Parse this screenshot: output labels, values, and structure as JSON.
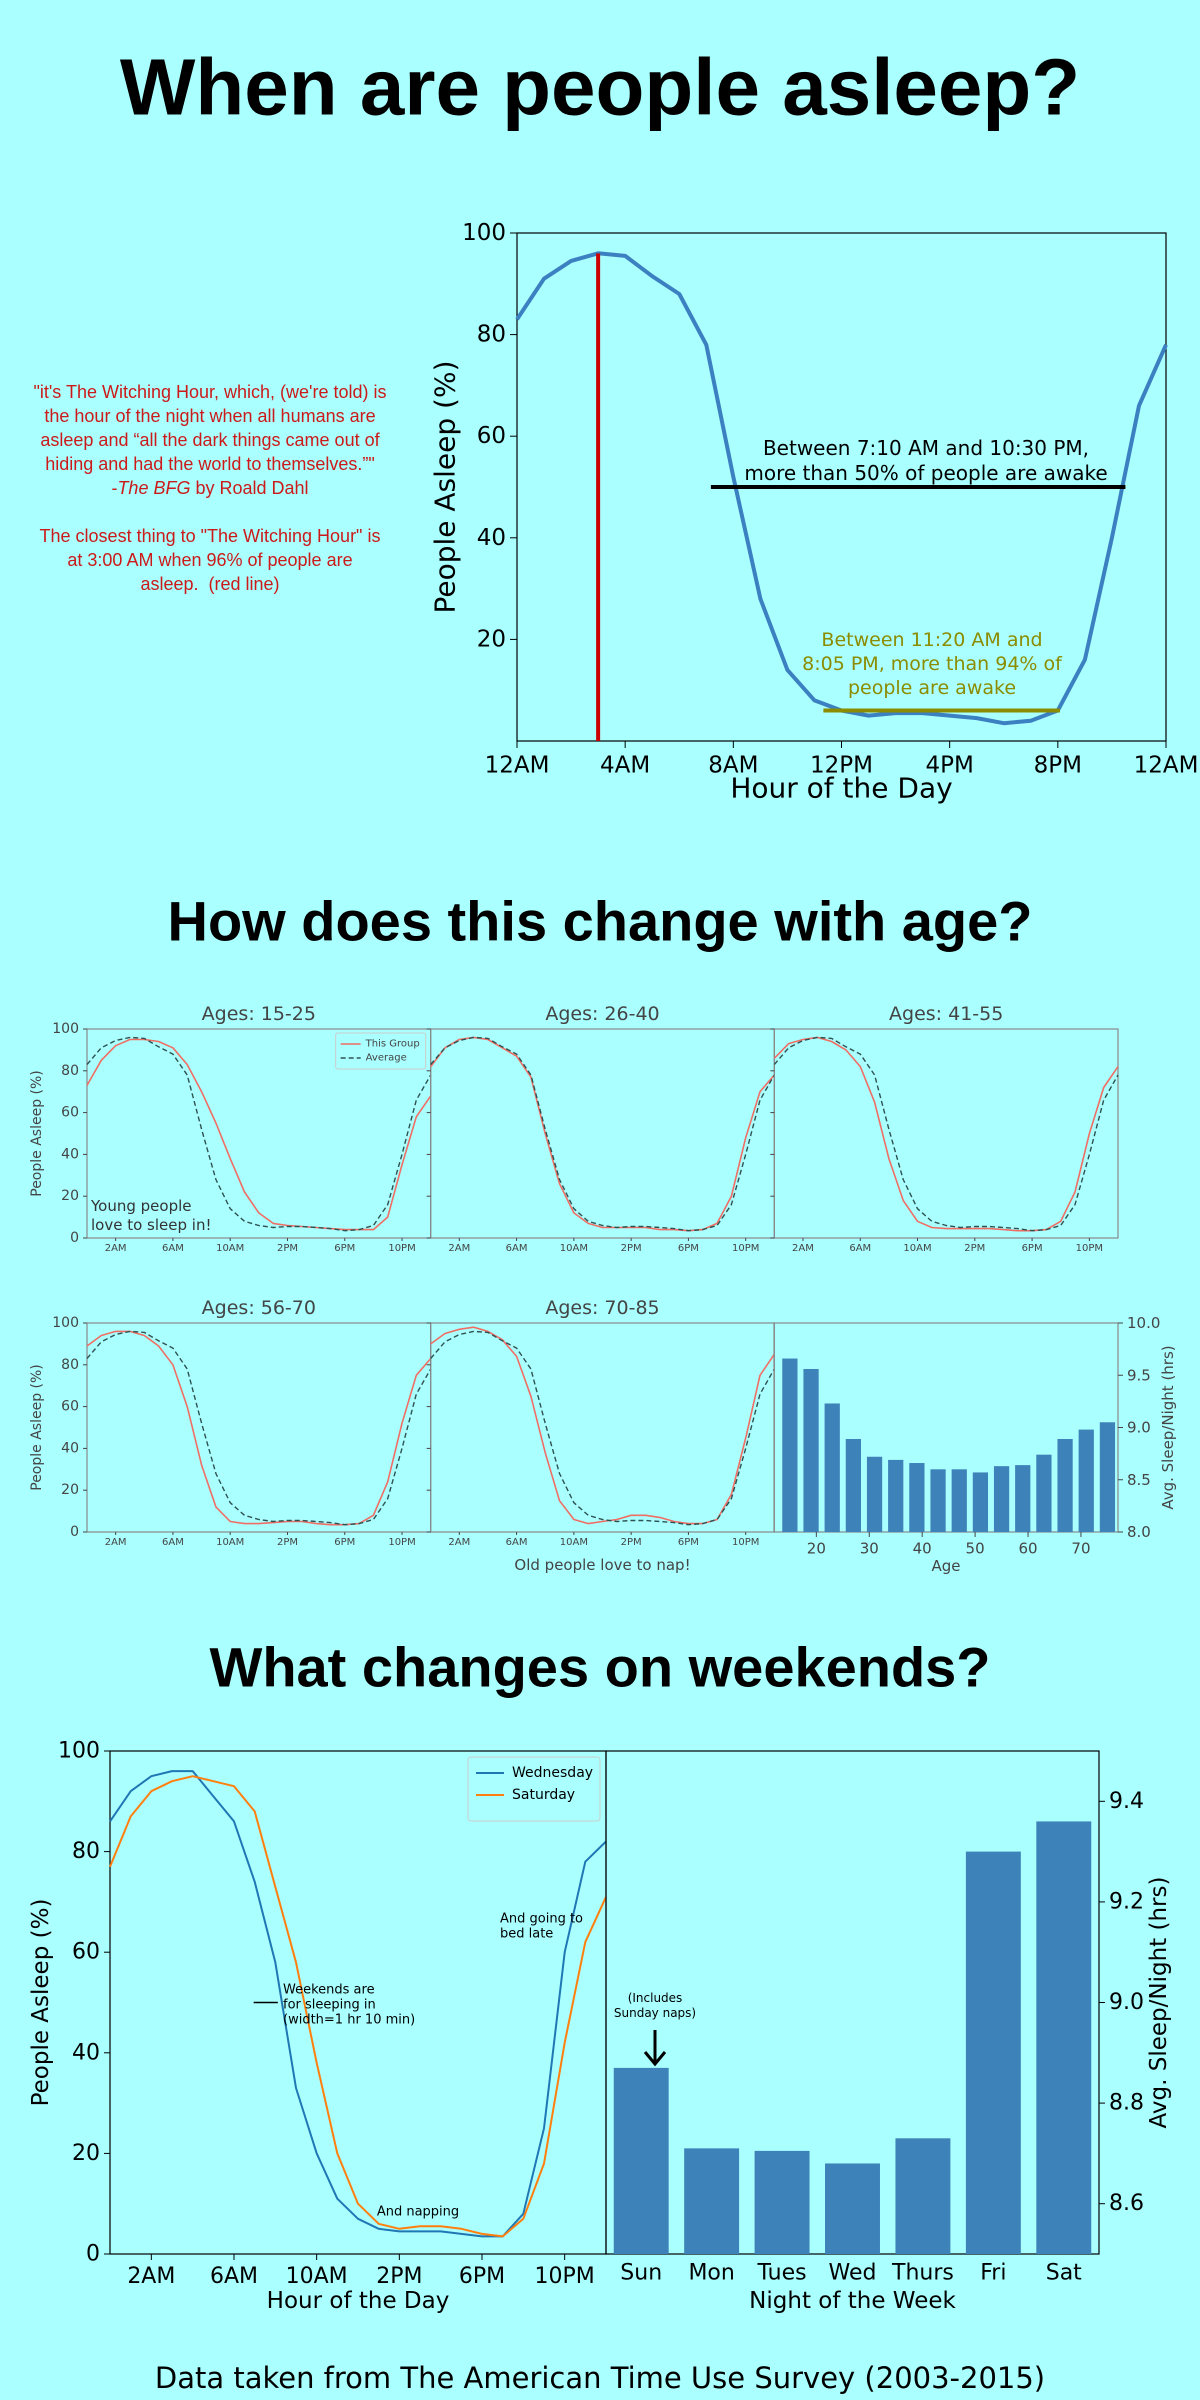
{
  "headings": [
    "When are people asleep?",
    "How does this change with age?",
    "What changes on weekends?"
  ],
  "quote": {
    "lines": [
      "\"it's The Witching Hour, which, (we're told) is",
      "the hour of the night when all humans are",
      "asleep and “all the dark things came out of",
      "hiding and had the world to themselves.”\""
    ],
    "attribution": [
      "-",
      "The BFG",
      " by Roald Dahl"
    ],
    "note": [
      "The closest thing to \"The Witching Hour\" is",
      "at 3:00 AM when 96% of people are",
      "asleep.  (red line)"
    ]
  },
  "footer": "Data taken from The American Time Use Survey (2003-2015)",
  "chart_data": [
    {
      "type": "line",
      "xlabel": "Hour of the Day",
      "ylabel": "People Asleep (%)",
      "x": [
        0,
        1,
        2,
        3,
        4,
        5,
        6,
        7,
        8,
        9,
        10,
        11,
        12,
        13,
        14,
        15,
        16,
        17,
        18,
        19,
        20,
        21,
        22,
        23,
        24
      ],
      "xlim": [
        0,
        24
      ],
      "xticks": [
        {
          "value": 0,
          "label": "12AM"
        },
        {
          "value": 4,
          "label": "4AM"
        },
        {
          "value": 8,
          "label": "8AM"
        },
        {
          "value": 12,
          "label": "12PM"
        },
        {
          "value": 16,
          "label": "4PM"
        },
        {
          "value": 20,
          "label": "8PM"
        },
        {
          "value": 24,
          "label": "12AM"
        }
      ],
      "ylim": [
        0,
        100
      ],
      "yticks": [
        20,
        40,
        60,
        80,
        100
      ],
      "series": [
        {
          "color": "#3b80c0",
          "values": [
            83,
            91,
            94.5,
            96,
            95.5,
            91.5,
            88,
            78,
            52,
            28,
            14,
            8,
            6,
            5,
            5.5,
            5.5,
            5,
            4.5,
            3.5,
            4,
            6,
            16,
            40,
            66,
            78
          ]
        }
      ],
      "lines": [
        {
          "x0": 3,
          "x1": 3,
          "y0": 0,
          "y1": 96,
          "color": "#cc0000"
        },
        {
          "x0": 7.17,
          "x1": 22.5,
          "y0": 50,
          "y1": 50,
          "color": "#000000"
        },
        {
          "x0": 11.33,
          "x1": 20.08,
          "y0": 6,
          "y1": 6,
          "color": "#8c8c00"
        }
      ],
      "notes": [
        {
          "text": [
            "Between 7:10 AM and 10:30 PM,",
            "more than 50% of people are awake"
          ],
          "color": "#000000"
        },
        {
          "text": [
            "Between 11:20 AM and",
            "8:05 PM, more than 94% of",
            "people are awake"
          ],
          "color": "#8c8c00"
        }
      ]
    },
    {
      "type": "small-multiples",
      "ylabel": "People Asleep (%)",
      "x": [
        0,
        1,
        2,
        3,
        4,
        5,
        6,
        7,
        8,
        9,
        10,
        11,
        12,
        13,
        14,
        15,
        16,
        17,
        18,
        19,
        20,
        21,
        22,
        23,
        24
      ],
      "xlim": [
        0,
        24
      ],
      "xticks": [
        {
          "value": 2,
          "label": "2AM"
        },
        {
          "value": 6,
          "label": "6AM"
        },
        {
          "value": 10,
          "label": "10AM"
        },
        {
          "value": 14,
          "label": "2PM"
        },
        {
          "value": 18,
          "label": "6PM"
        },
        {
          "value": 22,
          "label": "10PM"
        }
      ],
      "ylim": [
        0,
        100
      ],
      "yticks": [
        0,
        20,
        40,
        60,
        80,
        100
      ],
      "legend": "upper right",
      "group": {
        "name": "This Group",
        "color": "#f06e64"
      },
      "average": {
        "name": "Average",
        "color": "#2e5252",
        "values": [
          83,
          91,
          94.5,
          96,
          95.5,
          91.5,
          88,
          78,
          52,
          28,
          14,
          8,
          6,
          5,
          5.5,
          5.5,
          5,
          4.5,
          3.5,
          4,
          6,
          16,
          40,
          66,
          78
        ]
      },
      "panels": [
        {
          "title": "Ages: 15-25",
          "values": [
            73,
            85,
            92,
            95,
            95,
            94,
            91,
            83,
            70,
            55,
            38,
            22,
            12,
            7,
            6,
            5.5,
            5,
            4.5,
            4,
            4,
            4,
            10,
            35,
            58,
            68
          ],
          "note": [
            "Young people",
            "love to sleep in!"
          ]
        },
        {
          "title": "Ages: 26-40",
          "values": [
            82,
            91,
            95,
            96,
            95,
            91,
            87,
            77,
            50,
            26,
            12,
            7,
            5,
            5,
            5,
            5,
            4,
            4,
            3.5,
            4,
            7,
            20,
            48,
            70,
            78
          ]
        },
        {
          "title": "Ages: 41-55",
          "values": [
            86,
            93,
            95,
            96,
            94,
            90,
            82,
            65,
            38,
            18,
            8,
            5,
            4.5,
            4.5,
            4.5,
            4.5,
            4,
            3.5,
            3.5,
            4,
            8,
            22,
            50,
            72,
            82
          ]
        },
        {
          "title": "Ages: 56-70",
          "values": [
            89,
            94,
            96,
            96,
            94,
            89,
            80,
            60,
            32,
            12,
            5,
            4,
            4,
            4.5,
            5,
            5,
            4,
            3.5,
            3.5,
            4,
            8,
            24,
            52,
            75,
            83
          ]
        },
        {
          "title": "Ages: 70-85",
          "values": [
            90,
            95,
            97,
            98,
            96,
            92,
            84,
            65,
            38,
            15,
            6,
            4,
            5,
            6,
            8,
            8,
            7,
            5,
            4,
            4,
            6,
            18,
            45,
            75,
            85
          ],
          "xlabel": "Old people love to nap!"
        }
      ]
    },
    {
      "type": "bar",
      "xlabel": "Age",
      "y2label": "Avg. Sleep/Night (hrs)",
      "axis": "y2",
      "color": "#3d82b8",
      "x": [
        15,
        19,
        23,
        27,
        31,
        35,
        39,
        43,
        47,
        51,
        55,
        59,
        63,
        67,
        71,
        75
      ],
      "values": [
        9.66,
        9.56,
        9.23,
        8.89,
        8.72,
        8.69,
        8.66,
        8.6,
        8.6,
        8.57,
        8.63,
        8.64,
        8.74,
        8.89,
        8.98,
        9.05
      ],
      "xlim": [
        12,
        77
      ],
      "xticks": [
        20,
        30,
        40,
        50,
        60,
        70
      ],
      "y2lim": [
        8,
        10
      ],
      "y2ticks": [
        {
          "value": 8,
          "label": "8.0"
        },
        8.5,
        {
          "value": 9,
          "label": "9.0"
        },
        9.5,
        {
          "value": 10,
          "label": "10.0"
        }
      ]
    },
    {
      "type": "line",
      "xlabel": "Hour of the Day",
      "ylabel": "People Asleep (%)",
      "legend": "upper right",
      "x": [
        0,
        1,
        2,
        3,
        4,
        5,
        6,
        7,
        8,
        9,
        10,
        11,
        12,
        13,
        14,
        15,
        16,
        17,
        18,
        19,
        20,
        21,
        22,
        23,
        24
      ],
      "xlim": [
        0,
        24
      ],
      "xticks": [
        {
          "value": 2,
          "label": "2AM"
        },
        {
          "value": 6,
          "label": "6AM"
        },
        {
          "value": 10,
          "label": "10AM"
        },
        {
          "value": 14,
          "label": "2PM"
        },
        {
          "value": 18,
          "label": "6PM"
        },
        {
          "value": 22,
          "label": "10PM"
        }
      ],
      "ylim": [
        0,
        100
      ],
      "yticks": [
        0,
        20,
        40,
        60,
        80,
        100
      ],
      "series": [
        {
          "name": "Wednesday",
          "color": "#1f77b4",
          "values": [
            86,
            92,
            95,
            96,
            96,
            91,
            86,
            74,
            58,
            33,
            20,
            11,
            7,
            5,
            4.5,
            4.5,
            4.5,
            4,
            3.5,
            3.5,
            8,
            25,
            60,
            78,
            82
          ]
        },
        {
          "name": "Saturday",
          "color": "#ff7f0e",
          "values": [
            77,
            87,
            92,
            94,
            95,
            94,
            93,
            88,
            73,
            58,
            38,
            20,
            10,
            6,
            5,
            5.5,
            5.5,
            5,
            4,
            3.5,
            7,
            18,
            42,
            62,
            71
          ]
        }
      ],
      "lines": [
        {
          "x0": 6.95,
          "x1": 8.12,
          "y0": 50,
          "y1": 50,
          "color": "#000000"
        }
      ],
      "notes": [
        {
          "text": [
            "Weekends are",
            "for sleeping in",
            "(width=1 hr 10 min)"
          ],
          "color": "#000000"
        },
        {
          "text": [
            "And napping"
          ],
          "color": "#000000"
        },
        {
          "text": [
            "And going to",
            "bed late"
          ],
          "color": "#000000"
        }
      ]
    },
    {
      "type": "bar",
      "xlabel": "Night of the Week",
      "y2label": "Avg. Sleep/Night (hrs)",
      "axis": "y2",
      "color": "#3d82b8",
      "categories": [
        "Sun",
        "Mon",
        "Tues",
        "Wed",
        "Thurs",
        "Fri",
        "Sat"
      ],
      "values": [
        8.87,
        8.71,
        8.705,
        8.68,
        8.73,
        9.3,
        9.36
      ],
      "y2lim": [
        8.5,
        9.5
      ],
      "y2ticks": [
        8.6,
        8.8,
        {
          "value": 9,
          "label": "9.0"
        },
        9.2,
        9.4
      ],
      "notes": [
        {
          "text": [
            "(Includes",
            "Sunday naps)"
          ],
          "color": "#000000"
        }
      ]
    }
  ]
}
